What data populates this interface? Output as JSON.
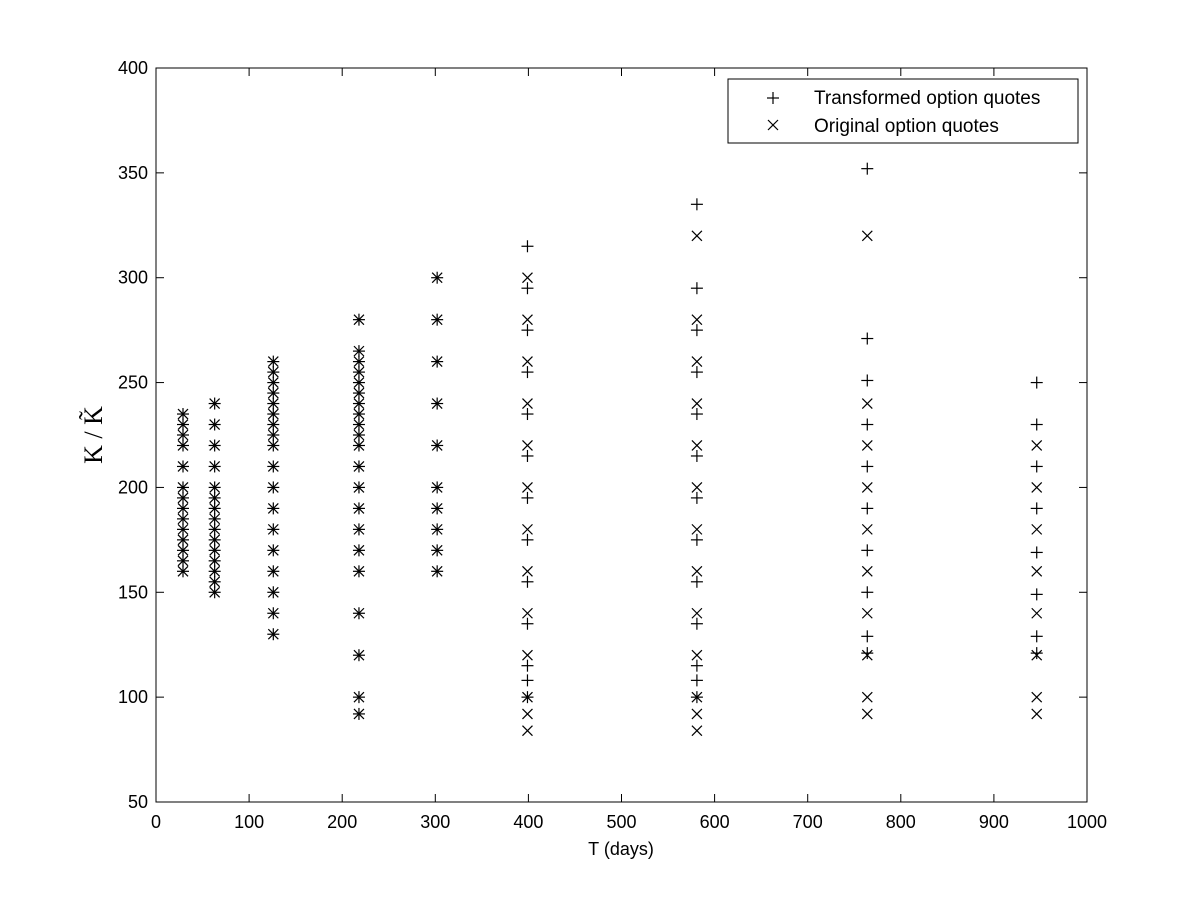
{
  "chart_data": {
    "type": "scatter",
    "title": "",
    "xlabel": "T (days)",
    "ylabel": "K / K̃",
    "xlim": [
      0,
      1000
    ],
    "ylim": [
      50,
      400
    ],
    "xticks": [
      0,
      100,
      200,
      300,
      400,
      500,
      600,
      700,
      800,
      900,
      1000
    ],
    "yticks": [
      50,
      100,
      150,
      200,
      250,
      300,
      350,
      400
    ],
    "grid": false,
    "legend_position": "top-right",
    "series": [
      {
        "name": "Transformed option quotes",
        "marker": "plus",
        "points": [
          [
            29,
            160
          ],
          [
            29,
            165
          ],
          [
            29,
            170
          ],
          [
            29,
            175
          ],
          [
            29,
            180
          ],
          [
            29,
            185
          ],
          [
            29,
            190
          ],
          [
            29,
            195
          ],
          [
            29,
            200
          ],
          [
            29,
            210
          ],
          [
            29,
            220
          ],
          [
            29,
            225
          ],
          [
            29,
            230
          ],
          [
            29,
            235
          ],
          [
            63,
            150
          ],
          [
            63,
            155
          ],
          [
            63,
            160
          ],
          [
            63,
            165
          ],
          [
            63,
            170
          ],
          [
            63,
            175
          ],
          [
            63,
            180
          ],
          [
            63,
            185
          ],
          [
            63,
            190
          ],
          [
            63,
            195
          ],
          [
            63,
            200
          ],
          [
            63,
            210
          ],
          [
            63,
            220
          ],
          [
            63,
            230
          ],
          [
            63,
            240
          ],
          [
            126,
            130
          ],
          [
            126,
            140
          ],
          [
            126,
            150
          ],
          [
            126,
            160
          ],
          [
            126,
            170
          ],
          [
            126,
            180
          ],
          [
            126,
            190
          ],
          [
            126,
            200
          ],
          [
            126,
            210
          ],
          [
            126,
            220
          ],
          [
            126,
            225
          ],
          [
            126,
            230
          ],
          [
            126,
            235
          ],
          [
            126,
            240
          ],
          [
            126,
            245
          ],
          [
            126,
            250
          ],
          [
            126,
            255
          ],
          [
            126,
            260
          ],
          [
            218,
            92
          ],
          [
            218,
            100
          ],
          [
            218,
            120
          ],
          [
            218,
            140
          ],
          [
            218,
            160
          ],
          [
            218,
            170
          ],
          [
            218,
            180
          ],
          [
            218,
            190
          ],
          [
            218,
            200
          ],
          [
            218,
            210
          ],
          [
            218,
            220
          ],
          [
            218,
            225
          ],
          [
            218,
            230
          ],
          [
            218,
            235
          ],
          [
            218,
            240
          ],
          [
            218,
            245
          ],
          [
            218,
            250
          ],
          [
            218,
            255
          ],
          [
            218,
            260
          ],
          [
            218,
            265
          ],
          [
            218,
            280
          ],
          [
            302,
            160
          ],
          [
            302,
            170
          ],
          [
            302,
            180
          ],
          [
            302,
            190
          ],
          [
            302,
            200
          ],
          [
            302,
            220
          ],
          [
            302,
            240
          ],
          [
            302,
            260
          ],
          [
            302,
            280
          ],
          [
            302,
            300
          ],
          [
            399,
            100
          ],
          [
            399,
            108
          ],
          [
            399,
            115
          ],
          [
            399,
            135
          ],
          [
            399,
            155
          ],
          [
            399,
            175
          ],
          [
            399,
            195
          ],
          [
            399,
            215
          ],
          [
            399,
            235
          ],
          [
            399,
            255
          ],
          [
            399,
            275
          ],
          [
            399,
            295
          ],
          [
            399,
            315
          ],
          [
            581,
            100
          ],
          [
            581,
            108
          ],
          [
            581,
            115
          ],
          [
            581,
            135
          ],
          [
            581,
            155
          ],
          [
            581,
            175
          ],
          [
            581,
            195
          ],
          [
            581,
            215
          ],
          [
            581,
            235
          ],
          [
            581,
            255
          ],
          [
            581,
            275
          ],
          [
            581,
            295
          ],
          [
            581,
            335
          ],
          [
            764,
            121
          ],
          [
            764,
            129
          ],
          [
            764,
            150
          ],
          [
            764,
            170
          ],
          [
            764,
            190
          ],
          [
            764,
            210
          ],
          [
            764,
            230
          ],
          [
            764,
            251
          ],
          [
            764,
            271
          ],
          [
            764,
            352
          ],
          [
            946,
            121
          ],
          [
            946,
            129
          ],
          [
            946,
            149
          ],
          [
            946,
            169
          ],
          [
            946,
            190
          ],
          [
            946,
            210
          ],
          [
            946,
            230
          ],
          [
            946,
            250
          ]
        ]
      },
      {
        "name": "Original option quotes",
        "marker": "x",
        "points": [
          [
            29,
            160
          ],
          [
            29,
            165
          ],
          [
            29,
            170
          ],
          [
            29,
            175
          ],
          [
            29,
            180
          ],
          [
            29,
            185
          ],
          [
            29,
            190
          ],
          [
            29,
            195
          ],
          [
            29,
            200
          ],
          [
            29,
            210
          ],
          [
            29,
            220
          ],
          [
            29,
            225
          ],
          [
            29,
            230
          ],
          [
            29,
            235
          ],
          [
            63,
            150
          ],
          [
            63,
            155
          ],
          [
            63,
            160
          ],
          [
            63,
            165
          ],
          [
            63,
            170
          ],
          [
            63,
            175
          ],
          [
            63,
            180
          ],
          [
            63,
            185
          ],
          [
            63,
            190
          ],
          [
            63,
            195
          ],
          [
            63,
            200
          ],
          [
            63,
            210
          ],
          [
            63,
            220
          ],
          [
            63,
            230
          ],
          [
            63,
            240
          ],
          [
            126,
            130
          ],
          [
            126,
            140
          ],
          [
            126,
            150
          ],
          [
            126,
            160
          ],
          [
            126,
            170
          ],
          [
            126,
            180
          ],
          [
            126,
            190
          ],
          [
            126,
            200
          ],
          [
            126,
            210
          ],
          [
            126,
            220
          ],
          [
            126,
            225
          ],
          [
            126,
            230
          ],
          [
            126,
            235
          ],
          [
            126,
            240
          ],
          [
            126,
            245
          ],
          [
            126,
            250
          ],
          [
            126,
            255
          ],
          [
            126,
            260
          ],
          [
            218,
            92
          ],
          [
            218,
            100
          ],
          [
            218,
            120
          ],
          [
            218,
            140
          ],
          [
            218,
            160
          ],
          [
            218,
            170
          ],
          [
            218,
            180
          ],
          [
            218,
            190
          ],
          [
            218,
            200
          ],
          [
            218,
            210
          ],
          [
            218,
            220
          ],
          [
            218,
            225
          ],
          [
            218,
            230
          ],
          [
            218,
            235
          ],
          [
            218,
            240
          ],
          [
            218,
            245
          ],
          [
            218,
            250
          ],
          [
            218,
            255
          ],
          [
            218,
            260
          ],
          [
            218,
            265
          ],
          [
            218,
            280
          ],
          [
            302,
            160
          ],
          [
            302,
            170
          ],
          [
            302,
            180
          ],
          [
            302,
            190
          ],
          [
            302,
            200
          ],
          [
            302,
            220
          ],
          [
            302,
            240
          ],
          [
            302,
            260
          ],
          [
            302,
            280
          ],
          [
            302,
            300
          ],
          [
            399,
            84
          ],
          [
            399,
            92
          ],
          [
            399,
            100
          ],
          [
            399,
            120
          ],
          [
            399,
            140
          ],
          [
            399,
            160
          ],
          [
            399,
            180
          ],
          [
            399,
            200
          ],
          [
            399,
            220
          ],
          [
            399,
            240
          ],
          [
            399,
            260
          ],
          [
            399,
            280
          ],
          [
            399,
            300
          ],
          [
            581,
            84
          ],
          [
            581,
            92
          ],
          [
            581,
            100
          ],
          [
            581,
            120
          ],
          [
            581,
            140
          ],
          [
            581,
            160
          ],
          [
            581,
            180
          ],
          [
            581,
            200
          ],
          [
            581,
            220
          ],
          [
            581,
            240
          ],
          [
            581,
            260
          ],
          [
            581,
            280
          ],
          [
            581,
            320
          ],
          [
            764,
            92
          ],
          [
            764,
            100
          ],
          [
            764,
            120
          ],
          [
            764,
            140
          ],
          [
            764,
            160
          ],
          [
            764,
            180
          ],
          [
            764,
            200
          ],
          [
            764,
            220
          ],
          [
            764,
            240
          ],
          [
            764,
            320
          ],
          [
            946,
            92
          ],
          [
            946,
            100
          ],
          [
            946,
            120
          ],
          [
            946,
            140
          ],
          [
            946,
            160
          ],
          [
            946,
            180
          ],
          [
            946,
            200
          ],
          [
            946,
            220
          ]
        ]
      }
    ]
  }
}
